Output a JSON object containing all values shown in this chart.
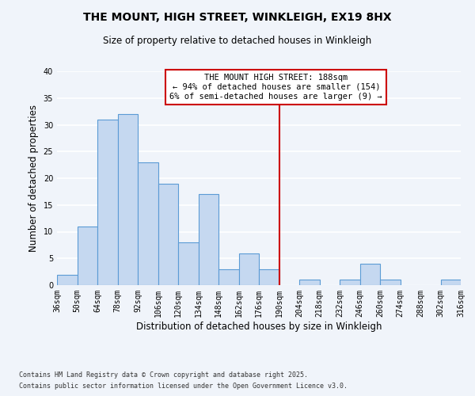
{
  "title": "THE MOUNT, HIGH STREET, WINKLEIGH, EX19 8HX",
  "subtitle": "Size of property relative to detached houses in Winkleigh",
  "xlabel": "Distribution of detached houses by size in Winkleigh",
  "ylabel": "Number of detached properties",
  "bin_edges": [
    36,
    50,
    64,
    78,
    92,
    106,
    120,
    134,
    148,
    162,
    176,
    190,
    204,
    218,
    232,
    246,
    260,
    274,
    288,
    302,
    316
  ],
  "counts": [
    2,
    11,
    31,
    32,
    23,
    19,
    8,
    17,
    3,
    6,
    3,
    0,
    1,
    0,
    1,
    4,
    1,
    0,
    0,
    1
  ],
  "bar_color": "#c5d8f0",
  "bar_edge_color": "#5b9bd5",
  "ref_line_x": 190,
  "ref_line_color": "#cc0000",
  "annotation_title": "THE MOUNT HIGH STREET: 188sqm",
  "annotation_line1": "← 94% of detached houses are smaller (154)",
  "annotation_line2": "6% of semi-detached houses are larger (9) →",
  "annotation_box_edge": "#cc0000",
  "ylim": [
    0,
    40
  ],
  "tick_labels": [
    "36sqm",
    "50sqm",
    "64sqm",
    "78sqm",
    "92sqm",
    "106sqm",
    "120sqm",
    "134sqm",
    "148sqm",
    "162sqm",
    "176sqm",
    "190sqm",
    "204sqm",
    "218sqm",
    "232sqm",
    "246sqm",
    "260sqm",
    "274sqm",
    "288sqm",
    "302sqm",
    "316sqm"
  ],
  "footnote1": "Contains HM Land Registry data © Crown copyright and database right 2025.",
  "footnote2": "Contains public sector information licensed under the Open Government Licence v3.0.",
  "background_color": "#f0f4fa",
  "grid_color": "#ffffff",
  "title_fontsize": 10,
  "subtitle_fontsize": 8.5,
  "axis_label_fontsize": 8.5,
  "tick_fontsize": 7,
  "annotation_fontsize": 7.5,
  "footnote_fontsize": 6
}
